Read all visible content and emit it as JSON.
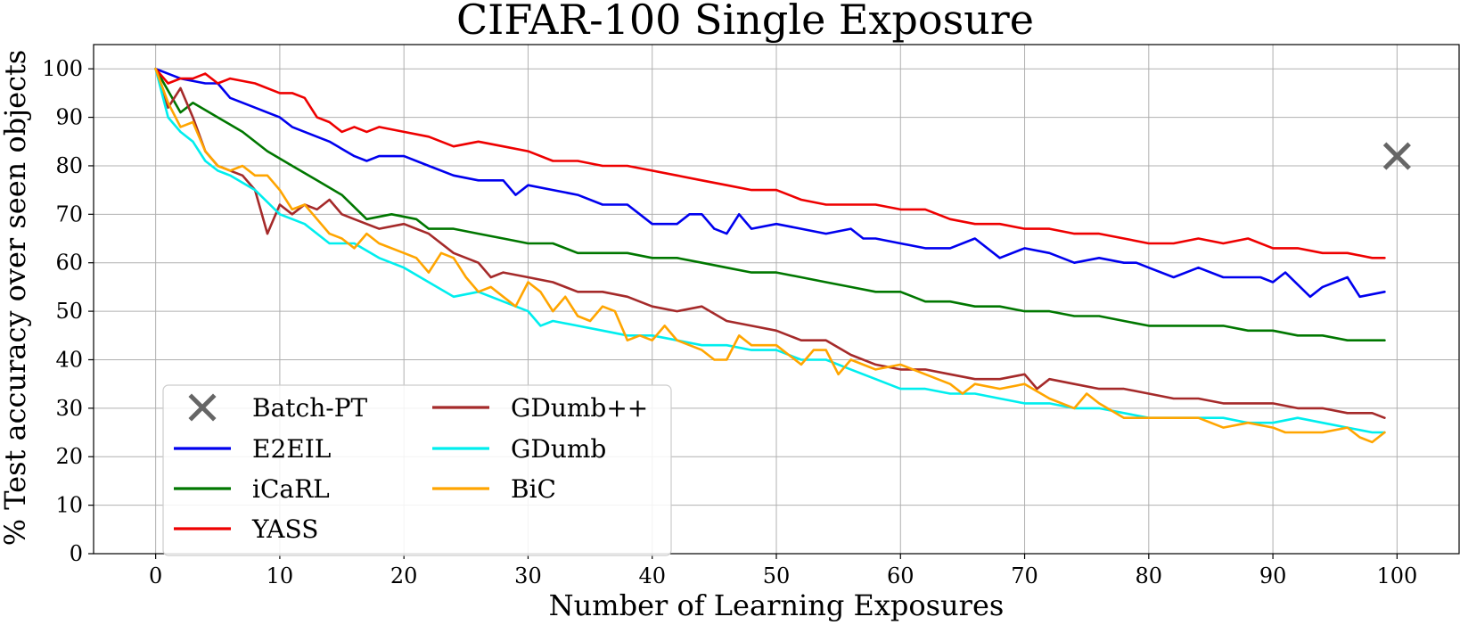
{
  "chart_data": {
    "type": "line",
    "title": "CIFAR-100 Single Exposure",
    "xlabel": "Number of Learning Exposures",
    "ylabel": "% Test accuracy over seen objects",
    "xlim": [
      -5,
      105
    ],
    "ylim": [
      0,
      105
    ],
    "xticks": [
      0,
      10,
      20,
      30,
      40,
      50,
      60,
      70,
      80,
      90,
      100
    ],
    "yticks": [
      0,
      10,
      20,
      30,
      40,
      50,
      60,
      70,
      80,
      90,
      100
    ],
    "grid": true,
    "legend_position": "lower-left",
    "legend": [
      "Batch-PT",
      "GDumb++",
      "E2EIL",
      "GDumb",
      "iCaRL",
      "BiC",
      "YASS"
    ],
    "markers": [
      {
        "name": "Batch-PT",
        "x": 100,
        "y": 82,
        "color": "#666666",
        "marker": "x"
      }
    ],
    "series": [
      {
        "name": "E2EIL",
        "color": "#0000ee",
        "x": [
          0,
          2,
          4,
          5,
          6,
          8,
          10,
          11,
          12,
          14,
          16,
          17,
          18,
          20,
          22,
          24,
          26,
          28,
          29,
          30,
          32,
          34,
          36,
          38,
          39,
          40,
          42,
          43,
          44,
          45,
          46,
          47,
          48,
          50,
          52,
          54,
          56,
          57,
          58,
          60,
          62,
          64,
          66,
          68,
          70,
          72,
          74,
          76,
          78,
          79,
          80,
          82,
          84,
          86,
          88,
          89,
          90,
          91,
          93,
          94,
          96,
          97,
          99
        ],
        "y": [
          100,
          98,
          97,
          97,
          94,
          92,
          90,
          88,
          87,
          85,
          82,
          81,
          82,
          82,
          80,
          78,
          77,
          77,
          74,
          76,
          75,
          74,
          72,
          72,
          70,
          68,
          68,
          70,
          70,
          67,
          66,
          70,
          67,
          68,
          67,
          66,
          67,
          65,
          65,
          64,
          63,
          63,
          65,
          61,
          63,
          62,
          60,
          61,
          60,
          60,
          59,
          57,
          59,
          57,
          57,
          57,
          56,
          58,
          53,
          55,
          57,
          53,
          54
        ]
      },
      {
        "name": "iCaRL",
        "color": "#007700",
        "x": [
          0,
          2,
          3,
          5,
          7,
          9,
          11,
          13,
          15,
          17,
          19,
          21,
          22,
          24,
          26,
          28,
          30,
          32,
          34,
          36,
          38,
          40,
          42,
          44,
          46,
          48,
          50,
          52,
          54,
          56,
          58,
          60,
          62,
          64,
          66,
          68,
          70,
          72,
          74,
          76,
          78,
          80,
          82,
          84,
          86,
          88,
          90,
          92,
          94,
          96,
          98,
          99
        ],
        "y": [
          100,
          91,
          93,
          90,
          87,
          83,
          80,
          77,
          74,
          69,
          70,
          69,
          67,
          67,
          66,
          65,
          64,
          64,
          62,
          62,
          62,
          61,
          61,
          60,
          59,
          58,
          58,
          57,
          56,
          55,
          54,
          54,
          52,
          52,
          51,
          51,
          50,
          50,
          49,
          49,
          48,
          47,
          47,
          47,
          47,
          46,
          46,
          45,
          45,
          44,
          44,
          44
        ]
      },
      {
        "name": "YASS",
        "color": "#ee0000",
        "x": [
          0,
          1,
          2,
          3,
          4,
          5,
          6,
          8,
          10,
          11,
          12,
          13,
          14,
          15,
          16,
          17,
          18,
          20,
          22,
          24,
          26,
          28,
          30,
          32,
          34,
          36,
          38,
          40,
          42,
          44,
          46,
          48,
          50,
          52,
          54,
          56,
          58,
          60,
          62,
          64,
          66,
          68,
          70,
          72,
          74,
          76,
          78,
          80,
          82,
          84,
          86,
          88,
          90,
          92,
          94,
          96,
          98,
          99
        ],
        "y": [
          100,
          97,
          98,
          98,
          99,
          97,
          98,
          97,
          95,
          95,
          94,
          90,
          89,
          87,
          88,
          87,
          88,
          87,
          86,
          84,
          85,
          84,
          83,
          81,
          81,
          80,
          80,
          79,
          78,
          77,
          76,
          75,
          75,
          73,
          72,
          72,
          72,
          71,
          71,
          69,
          68,
          68,
          67,
          67,
          66,
          66,
          65,
          64,
          64,
          65,
          64,
          65,
          63,
          63,
          62,
          62,
          61,
          61
        ]
      },
      {
        "name": "GDumb++",
        "color": "#a52a2a",
        "x": [
          0,
          1,
          2,
          3,
          4,
          5,
          6,
          7,
          8,
          9,
          10,
          11,
          12,
          13,
          14,
          15,
          16,
          18,
          20,
          22,
          24,
          26,
          27,
          28,
          30,
          32,
          34,
          36,
          38,
          40,
          42,
          44,
          46,
          48,
          50,
          52,
          54,
          56,
          58,
          60,
          62,
          64,
          66,
          68,
          70,
          71,
          72,
          74,
          76,
          78,
          80,
          82,
          84,
          86,
          88,
          90,
          92,
          94,
          96,
          98,
          99
        ],
        "y": [
          100,
          92,
          96,
          90,
          83,
          80,
          79,
          78,
          75,
          66,
          72,
          70,
          72,
          71,
          73,
          70,
          69,
          67,
          68,
          66,
          62,
          60,
          57,
          58,
          57,
          56,
          54,
          54,
          53,
          51,
          50,
          51,
          48,
          47,
          46,
          44,
          44,
          41,
          39,
          38,
          38,
          37,
          36,
          36,
          37,
          34,
          36,
          35,
          34,
          34,
          33,
          32,
          32,
          31,
          31,
          31,
          30,
          30,
          29,
          29,
          28
        ]
      },
      {
        "name": "GDumb",
        "color": "#00eeee",
        "x": [
          0,
          1,
          2,
          3,
          4,
          5,
          6,
          8,
          10,
          12,
          14,
          16,
          18,
          20,
          22,
          24,
          26,
          28,
          30,
          31,
          32,
          34,
          36,
          38,
          40,
          42,
          44,
          46,
          48,
          50,
          52,
          54,
          56,
          58,
          60,
          62,
          64,
          66,
          68,
          70,
          72,
          74,
          76,
          78,
          80,
          82,
          84,
          86,
          88,
          90,
          92,
          94,
          96,
          98,
          99
        ],
        "y": [
          100,
          90,
          87,
          85,
          81,
          79,
          78,
          75,
          70,
          68,
          64,
          64,
          61,
          59,
          56,
          53,
          54,
          52,
          50,
          47,
          48,
          47,
          46,
          45,
          45,
          44,
          43,
          43,
          42,
          42,
          40,
          40,
          38,
          36,
          34,
          34,
          33,
          33,
          32,
          31,
          31,
          30,
          30,
          29,
          28,
          28,
          28,
          28,
          27,
          27,
          28,
          27,
          26,
          25,
          25
        ]
      },
      {
        "name": "BiC",
        "color": "#ffa500",
        "x": [
          0,
          1,
          2,
          3,
          4,
          5,
          6,
          7,
          8,
          9,
          10,
          11,
          12,
          13,
          14,
          15,
          16,
          17,
          18,
          20,
          21,
          22,
          23,
          24,
          25,
          26,
          27,
          28,
          29,
          30,
          31,
          32,
          33,
          34,
          35,
          36,
          37,
          38,
          39,
          40,
          41,
          42,
          44,
          45,
          46,
          47,
          48,
          50,
          52,
          53,
          54,
          55,
          56,
          58,
          60,
          62,
          64,
          65,
          66,
          68,
          70,
          72,
          74,
          75,
          76,
          78,
          80,
          82,
          84,
          86,
          88,
          90,
          91,
          92,
          94,
          96,
          97,
          98,
          99
        ],
        "y": [
          100,
          93,
          88,
          89,
          83,
          80,
          79,
          80,
          78,
          78,
          75,
          71,
          72,
          69,
          66,
          65,
          63,
          66,
          64,
          62,
          61,
          58,
          62,
          61,
          57,
          54,
          55,
          53,
          51,
          56,
          54,
          50,
          53,
          49,
          48,
          51,
          50,
          44,
          45,
          44,
          47,
          44,
          42,
          40,
          40,
          45,
          43,
          43,
          39,
          42,
          42,
          37,
          40,
          38,
          39,
          37,
          35,
          33,
          35,
          34,
          35,
          32,
          30,
          33,
          31,
          28,
          28,
          28,
          28,
          26,
          27,
          26,
          25,
          25,
          25,
          26,
          24,
          23,
          25
        ]
      }
    ]
  }
}
